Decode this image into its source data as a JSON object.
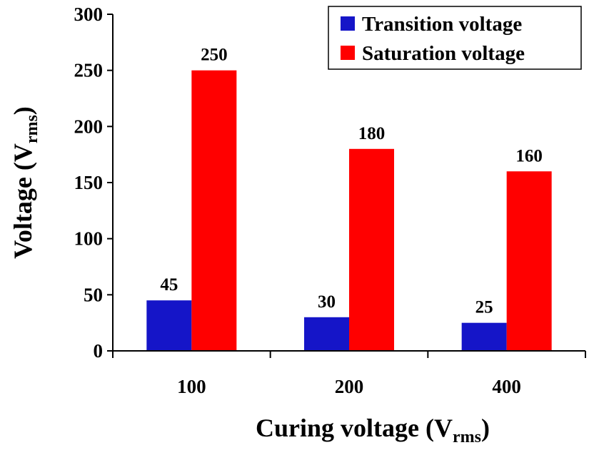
{
  "chart_data": {
    "type": "bar",
    "categories": [
      "100",
      "200",
      "400"
    ],
    "series": [
      {
        "name": "Transition voltage",
        "values": [
          45,
          30,
          25
        ],
        "color": "#1515c8"
      },
      {
        "name": "Saturation voltage",
        "values": [
          250,
          180,
          160
        ],
        "color": "#ff0000"
      }
    ],
    "data_labels": [
      [
        "45",
        "30",
        "25"
      ],
      [
        "250",
        "180",
        "160"
      ]
    ],
    "y_ticks": [
      "0",
      "50",
      "100",
      "150",
      "200",
      "250",
      "300"
    ],
    "ylim": [
      0,
      300
    ],
    "xlabel_main": "Curing voltage (V",
    "xlabel_sub": "rms",
    "xlabel_end": ")",
    "ylabel_main": "Voltage (V",
    "ylabel_sub": "rms",
    "ylabel_end": ")",
    "legend_position": "top-right",
    "grid": false
  }
}
